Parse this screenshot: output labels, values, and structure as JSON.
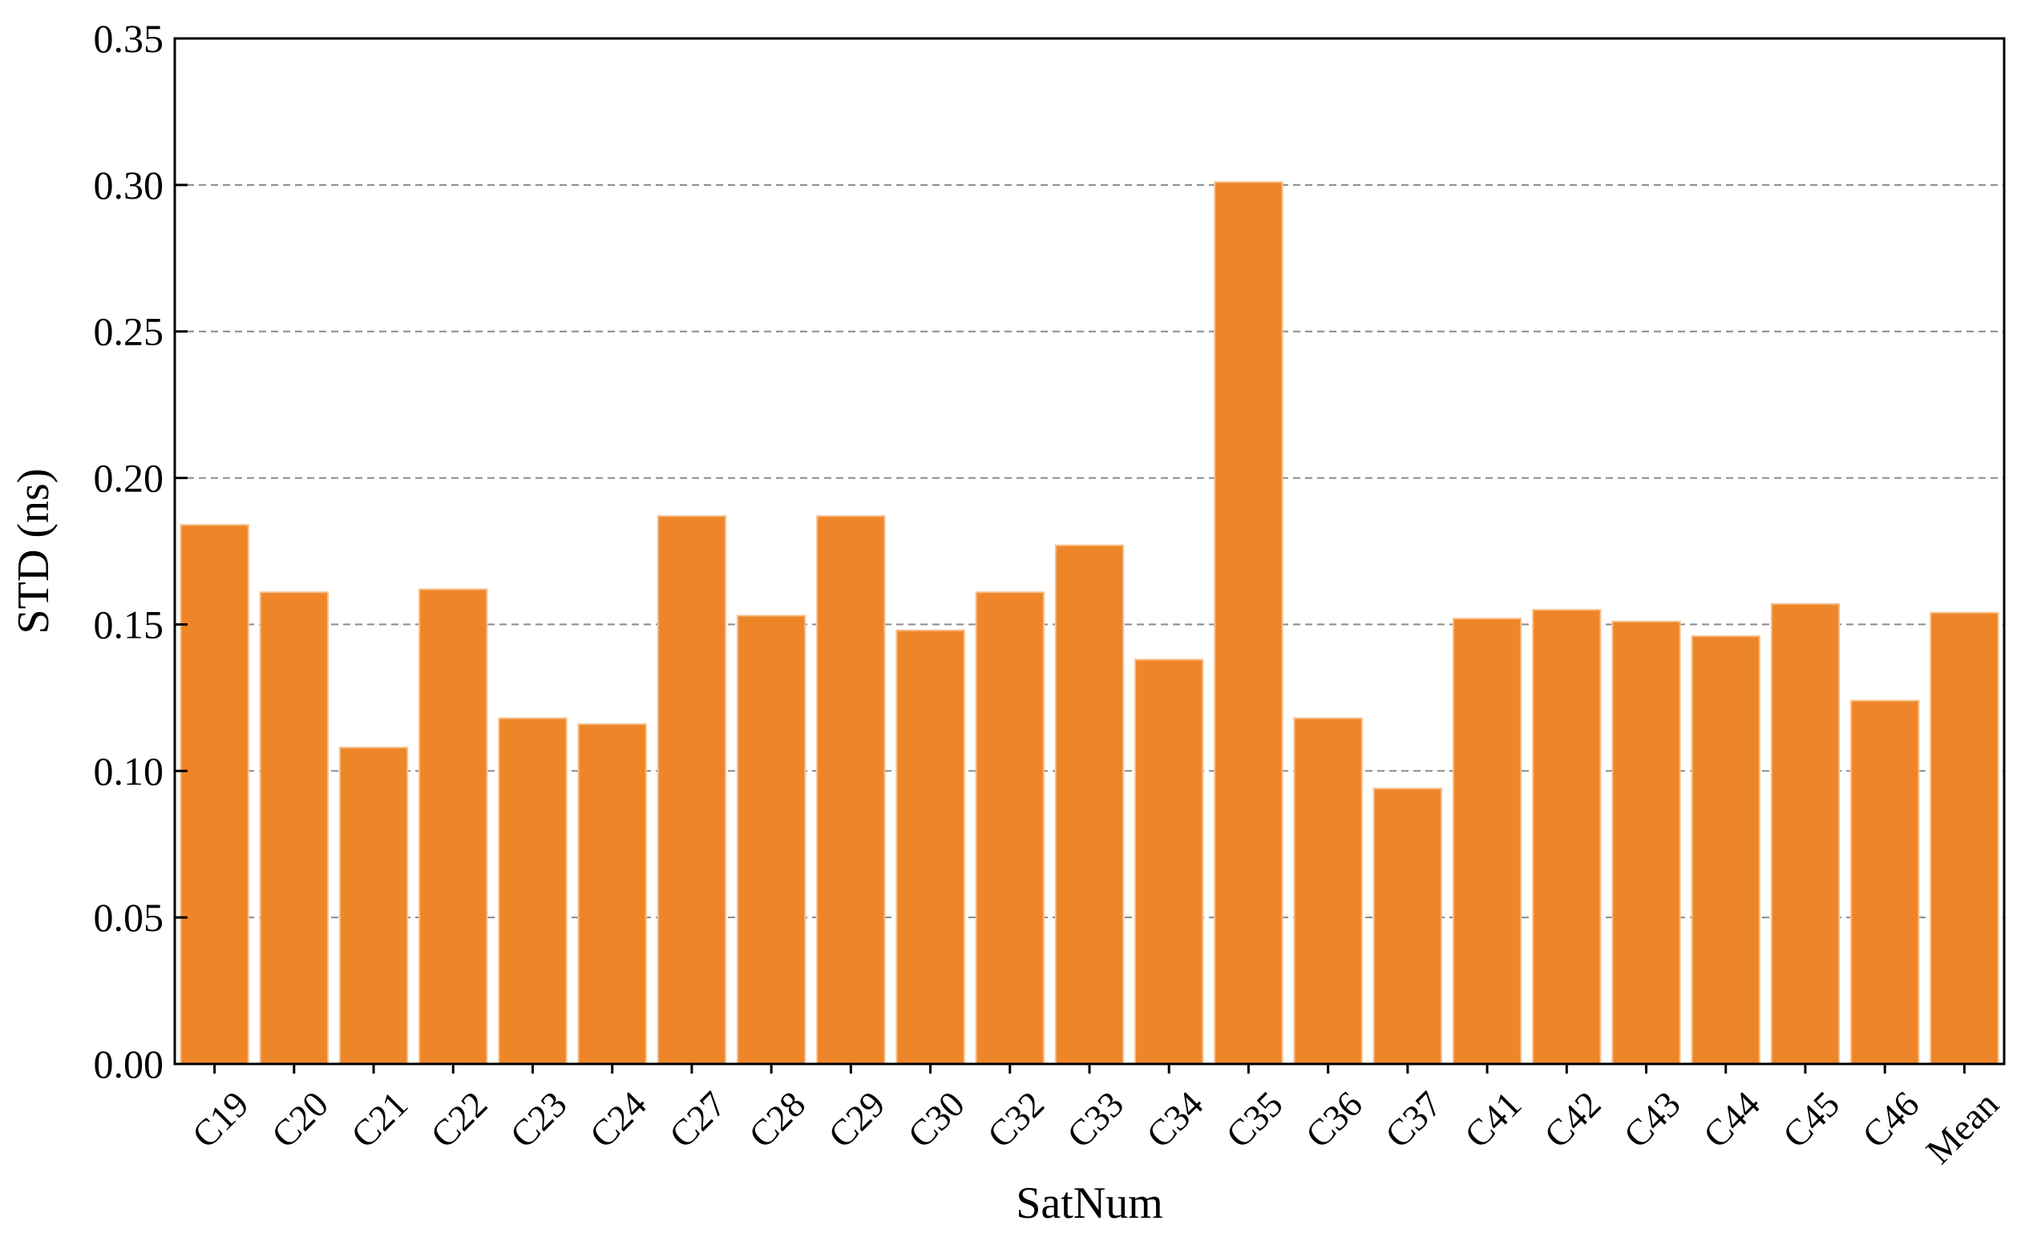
{
  "chart_data": {
    "type": "bar",
    "title": "",
    "xlabel": "SatNum",
    "ylabel": "STD (ns)",
    "ylim": [
      0,
      0.35
    ],
    "yticks": [
      "0.00",
      "0.05",
      "0.10",
      "0.15",
      "0.20",
      "0.25",
      "0.30",
      "0.35"
    ],
    "grid": "horizontal dashed",
    "bar_color": "#ee8629",
    "categories": [
      "C19",
      "C20",
      "C21",
      "C22",
      "C23",
      "C24",
      "C27",
      "C28",
      "C29",
      "C30",
      "C32",
      "C33",
      "C34",
      "C35",
      "C36",
      "C37",
      "C41",
      "C42",
      "C43",
      "C44",
      "C45",
      "C46",
      "Mean"
    ],
    "values": [
      0.184,
      0.161,
      0.108,
      0.162,
      0.118,
      0.116,
      0.187,
      0.153,
      0.187,
      0.148,
      0.161,
      0.177,
      0.138,
      0.301,
      0.118,
      0.094,
      0.152,
      0.155,
      0.151,
      0.146,
      0.157,
      0.124,
      0.154
    ]
  }
}
